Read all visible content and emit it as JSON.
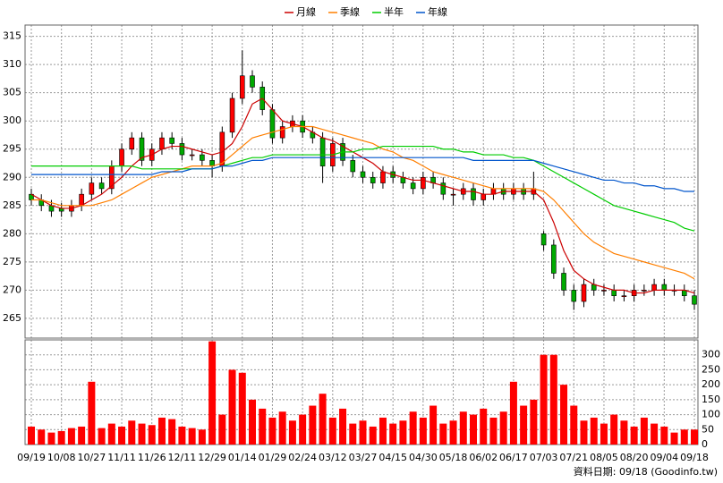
{
  "chart_data": [
    {
      "type": "candlestick",
      "open": [
        287,
        286,
        285,
        284.5,
        284,
        285,
        287,
        289,
        288,
        292,
        295,
        297,
        293,
        295,
        297,
        296,
        294,
        294,
        293,
        292,
        298,
        304,
        308,
        306,
        302,
        297,
        299,
        300,
        298,
        297,
        292,
        296,
        293,
        291,
        290,
        289,
        291,
        290,
        289,
        288,
        290,
        289,
        287,
        287,
        288,
        286,
        287,
        288,
        287,
        288,
        287,
        280,
        278,
        273,
        270,
        268,
        271,
        270,
        270,
        269,
        269,
        270,
        270,
        271,
        270,
        270,
        269
      ],
      "high": [
        288,
        287,
        286,
        285.5,
        286,
        288,
        290,
        290,
        293,
        296,
        298,
        298,
        296,
        298,
        298,
        297,
        295,
        295,
        294,
        299,
        305,
        312.5,
        309,
        307,
        303,
        300,
        301,
        301,
        299,
        298,
        297,
        297,
        294,
        292,
        291,
        292,
        292,
        291,
        290,
        291,
        291,
        290,
        288,
        289,
        289,
        288,
        289,
        289,
        289,
        289,
        291,
        280.5,
        279,
        274,
        271,
        272,
        272,
        271,
        271,
        270,
        271,
        271,
        272,
        272,
        271,
        271,
        270
      ],
      "low": [
        285,
        284,
        283,
        283,
        283,
        284,
        286,
        287,
        287,
        291,
        294,
        292,
        292,
        294,
        295,
        293,
        293,
        292,
        290,
        291,
        297,
        303,
        305,
        301,
        296,
        296,
        298,
        297,
        296,
        289,
        291,
        292,
        290,
        289,
        288,
        288,
        289,
        288,
        287,
        287,
        288,
        286,
        285,
        286,
        285,
        285,
        286,
        286,
        286,
        286,
        286,
        277,
        272,
        269,
        266.5,
        267,
        269,
        269,
        268,
        268,
        268,
        269,
        269,
        269,
        269,
        268,
        266.5
      ],
      "close": [
        286,
        285,
        284,
        284,
        285,
        287,
        289,
        288,
        292,
        295,
        297,
        293,
        295,
        297,
        296,
        294,
        294,
        293,
        292,
        298,
        304,
        308,
        306,
        302,
        297,
        299,
        300,
        298,
        297,
        292,
        296,
        293,
        291,
        290,
        289,
        291,
        290,
        289,
        288,
        290,
        289,
        287,
        287,
        288,
        286,
        287,
        288,
        287,
        288,
        287,
        288,
        278,
        273,
        270,
        268,
        271,
        270,
        270,
        269,
        269,
        270,
        270,
        271,
        270,
        270,
        269,
        267.5
      ],
      "up_color": "#ff0000",
      "down_color": "#00aa00",
      "series": [
        {
          "name": "月線",
          "color": "#cc0000",
          "values": [
            287,
            286,
            285,
            284.5,
            284.5,
            285,
            286,
            287,
            288.5,
            290,
            292,
            293.5,
            294,
            295,
            295.5,
            295.5,
            295,
            294.5,
            294,
            294.5,
            296,
            299,
            303,
            304,
            302,
            300,
            299.5,
            299,
            298,
            297,
            296.5,
            295.5,
            294.5,
            293.5,
            292.5,
            291,
            290.5,
            290,
            289.5,
            289.5,
            289,
            288.5,
            288,
            287.5,
            287.5,
            287,
            287,
            287.5,
            287.5,
            287.5,
            287.5,
            286,
            282,
            277,
            273.5,
            272,
            271,
            270.5,
            270,
            270,
            269.5,
            269.5,
            270,
            270,
            270,
            270,
            269.5
          ]
        },
        {
          "name": "季線",
          "color": "#ff7f00",
          "values": [
            286,
            286,
            285.5,
            285,
            285,
            285,
            285,
            285.5,
            286,
            287,
            288,
            289,
            290,
            290.5,
            291,
            291.5,
            292,
            292,
            292,
            292.5,
            294,
            295.5,
            297,
            297.5,
            298,
            298.5,
            299,
            299,
            299,
            298.5,
            298,
            297.5,
            297,
            296.5,
            296,
            295,
            294.5,
            293.5,
            293,
            292,
            291,
            290.5,
            290,
            289.5,
            289,
            288.5,
            288,
            288,
            288,
            288,
            288,
            287.5,
            286,
            284,
            282,
            280,
            278.5,
            277.5,
            276.5,
            276,
            275.5,
            275,
            274.5,
            274,
            273.5,
            273,
            272
          ]
        },
        {
          "name": "半年",
          "color": "#00cc00",
          "values": [
            292,
            292,
            292,
            292,
            292,
            292,
            292,
            292,
            292,
            292,
            292,
            291.5,
            291.5,
            291.5,
            291.5,
            291.5,
            291.5,
            291.5,
            291.5,
            292,
            292.5,
            293,
            293.5,
            293.5,
            294,
            294,
            294,
            294,
            294,
            294,
            294,
            294.5,
            294.5,
            295,
            295,
            295.5,
            295.5,
            295.5,
            295.5,
            295.5,
            295.5,
            295,
            295,
            294.5,
            294.5,
            294,
            294,
            294,
            293.5,
            293.5,
            293,
            292,
            291,
            290,
            289,
            288,
            287,
            286,
            285,
            284.5,
            284,
            283.5,
            283,
            282.5,
            282,
            281,
            280.5
          ]
        },
        {
          "name": "年線",
          "color": "#0055cc",
          "values": [
            290.5,
            290.5,
            290.5,
            290.5,
            290.5,
            290.5,
            290.5,
            290.5,
            290.5,
            290.5,
            290.5,
            290.5,
            290.5,
            291,
            291,
            291,
            291.5,
            291.5,
            291.5,
            292,
            292,
            292.5,
            293,
            293,
            293.5,
            293.5,
            293.5,
            293.5,
            293.5,
            293.5,
            293.5,
            293.5,
            293.5,
            293.5,
            293.5,
            293.5,
            293.5,
            293.5,
            293.5,
            293.5,
            293.5,
            293.5,
            293.5,
            293.5,
            293,
            293,
            293,
            293,
            293,
            293,
            293,
            292.5,
            292,
            291.5,
            291,
            290.5,
            290,
            289.5,
            289.5,
            289,
            289,
            288.5,
            288.5,
            288,
            288,
            287.5,
            287.5
          ]
        }
      ],
      "ylim": [
        261.5,
        317
      ],
      "yticks": [
        265,
        270,
        275,
        280,
        285,
        290,
        295,
        300,
        305,
        310,
        315
      ],
      "grid": true,
      "legend": "top"
    },
    {
      "type": "bar",
      "categories": [
        "09/19",
        null,
        null,
        "10/08",
        null,
        null,
        "10/27",
        null,
        null,
        "11/11",
        null,
        null,
        "11/26",
        null,
        null,
        "12/11",
        null,
        null,
        "12/29",
        null,
        null,
        "01/14",
        null,
        null,
        "01/29",
        null,
        null,
        "02/24",
        null,
        null,
        "03/12",
        null,
        null,
        "03/27",
        null,
        null,
        "04/15",
        null,
        null,
        "04/30",
        null,
        null,
        "05/18",
        null,
        null,
        "06/02",
        null,
        null,
        "06/17",
        null,
        null,
        "07/03",
        null,
        null,
        "07/21",
        null,
        null,
        "08/05",
        null,
        null,
        "08/20",
        null,
        null,
        "09/04",
        null,
        null,
        "09/18"
      ],
      "values": [
        60,
        50,
        40,
        45,
        55,
        60,
        210,
        55,
        70,
        60,
        80,
        70,
        65,
        90,
        85,
        60,
        55,
        50,
        345,
        100,
        250,
        240,
        150,
        120,
        90,
        110,
        80,
        100,
        130,
        170,
        90,
        120,
        70,
        80,
        60,
        90,
        70,
        80,
        110,
        90,
        130,
        70,
        80,
        110,
        100,
        120,
        90,
        110,
        210,
        130,
        150,
        300,
        300,
        200,
        130,
        80,
        90,
        70,
        100,
        80,
        60,
        90,
        70,
        60,
        40,
        50,
        50
      ],
      "color": "#ff0000",
      "ylim": [
        0,
        350
      ],
      "yticks": [
        0,
        50,
        100,
        150,
        200,
        250,
        300
      ],
      "grid": true,
      "note": "資料日期: 09/18 (Goodinfo.tw)"
    }
  ]
}
